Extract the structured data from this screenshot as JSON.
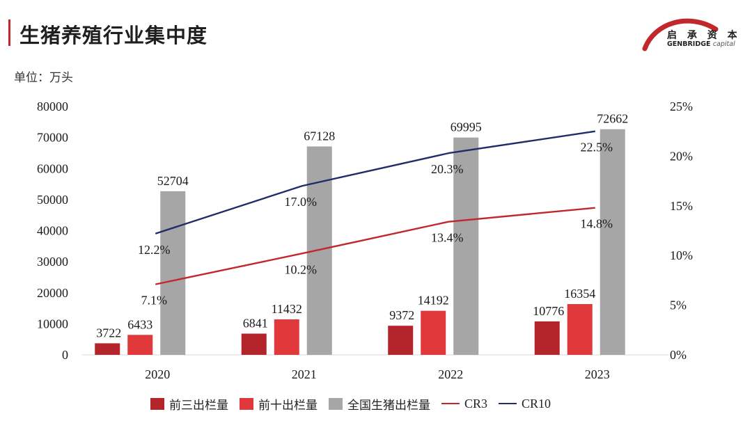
{
  "header": {
    "title": "生猪养殖行业集中度",
    "unit": "单位：万头",
    "logo_cn": "启 承 资 本",
    "logo_en_bold": "GENBRIDGE",
    "logo_en_light": "capital"
  },
  "colors": {
    "cr3_bar": "#b3242b",
    "cr10_bar": "#e0383b",
    "total_bar": "#a6a6a6",
    "cr3_line": "#c1272d",
    "cr10_line": "#1f2d6b",
    "accent": "#c0282e"
  },
  "chart_data": {
    "type": "bar",
    "title": "生猪养殖行业集中度",
    "ylabel": "单位：万头",
    "categories": [
      "2020",
      "2021",
      "2022",
      "2023"
    ],
    "ylim": [
      0,
      80000
    ],
    "y_ticks": [
      "0",
      "10000",
      "20000",
      "30000",
      "40000",
      "50000",
      "60000",
      "70000",
      "80000"
    ],
    "y2lim": [
      0,
      25
    ],
    "y2_ticks": [
      "0%",
      "5%",
      "10%",
      "15%",
      "20%",
      "25%"
    ],
    "series": [
      {
        "name": "前三出栏量",
        "type": "bar",
        "axis": "left",
        "values": [
          3722,
          6841,
          9372,
          10776
        ],
        "labels": [
          "3722",
          "6841",
          "9372",
          "10776"
        ]
      },
      {
        "name": "前十出栏量",
        "type": "bar",
        "axis": "left",
        "values": [
          6433,
          11432,
          14192,
          16354
        ],
        "labels": [
          "6433",
          "11432",
          "14192",
          "16354"
        ]
      },
      {
        "name": "全国生猪出栏量",
        "type": "bar",
        "axis": "left",
        "values": [
          52704,
          67128,
          69995,
          72662
        ],
        "labels": [
          "52704",
          "67128",
          "69995",
          "72662"
        ]
      },
      {
        "name": "CR3",
        "type": "line",
        "axis": "right",
        "values": [
          7.1,
          10.2,
          13.4,
          14.8
        ],
        "labels": [
          "7.1%",
          "10.2%",
          "13.4%",
          "14.8%"
        ]
      },
      {
        "name": "CR10",
        "type": "line",
        "axis": "right",
        "values": [
          12.2,
          17.0,
          20.3,
          22.5
        ],
        "labels": [
          "12.2%",
          "17.0%",
          "20.3%",
          "22.5%"
        ]
      }
    ],
    "legend_position": "bottom"
  }
}
